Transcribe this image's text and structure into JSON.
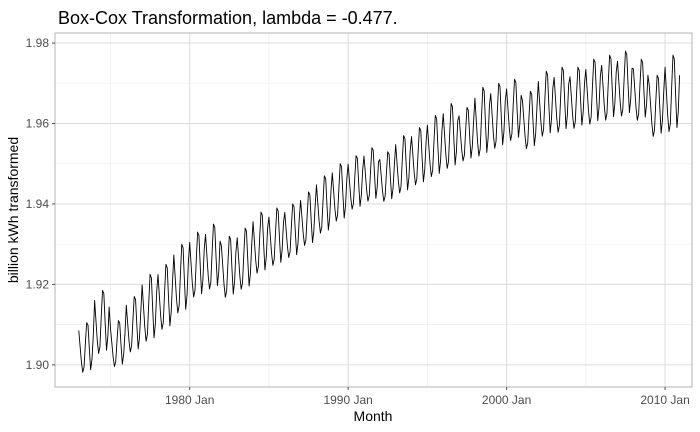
{
  "chart_data": {
    "type": "line",
    "title": "Box-Cox Transformation, lambda = -0.477.",
    "xlabel": "Month",
    "ylabel": "billion kWh transformed",
    "x_range": [
      1971.5,
      2011.7
    ],
    "ylim": [
      1.8945,
      1.9825
    ],
    "x_ticks": [
      {
        "value": 1980,
        "label": "1980 Jan"
      },
      {
        "value": 1990,
        "label": "1990 Jan"
      },
      {
        "value": 2000,
        "label": "2000 Jan"
      },
      {
        "value": 2010,
        "label": "2010 Jan"
      }
    ],
    "y_ticks": [
      {
        "value": 1.9,
        "label": "1.90"
      },
      {
        "value": 1.92,
        "label": "1.92"
      },
      {
        "value": 1.94,
        "label": "1.94"
      },
      {
        "value": 1.96,
        "label": "1.96"
      },
      {
        "value": 1.98,
        "label": "1.98"
      }
    ],
    "grid": true,
    "legend": "none",
    "series": [
      {
        "color": "#000000",
        "x_start": "1973 Jan",
        "x_end": "2010 Dec",
        "frequency": "monthly",
        "yearly": [
          {
            "year": 1973,
            "trough": 1.8975,
            "peak": 1.9105
          },
          {
            "year": 1974,
            "trough": 1.902,
            "peak": 1.9185
          },
          {
            "year": 1975,
            "trough": 1.899,
            "peak": 1.911
          },
          {
            "year": 1976,
            "trough": 1.9025,
            "peak": 1.917
          },
          {
            "year": 1977,
            "trough": 1.905,
            "peak": 1.9225
          },
          {
            "year": 1978,
            "trough": 1.908,
            "peak": 1.925
          },
          {
            "year": 1979,
            "trough": 1.912,
            "peak": 1.93
          },
          {
            "year": 1980,
            "trough": 1.916,
            "peak": 1.933
          },
          {
            "year": 1981,
            "trough": 1.918,
            "peak": 1.935
          },
          {
            "year": 1982,
            "trough": 1.916,
            "peak": 1.932
          },
          {
            "year": 1983,
            "trough": 1.918,
            "peak": 1.934
          },
          {
            "year": 1984,
            "trough": 1.922,
            "peak": 1.938
          },
          {
            "year": 1985,
            "trough": 1.924,
            "peak": 1.939
          },
          {
            "year": 1986,
            "trough": 1.926,
            "peak": 1.94
          },
          {
            "year": 1987,
            "trough": 1.929,
            "peak": 1.943
          },
          {
            "year": 1988,
            "trough": 1.932,
            "peak": 1.947
          },
          {
            "year": 1989,
            "trough": 1.935,
            "peak": 1.95
          },
          {
            "year": 1990,
            "trough": 1.938,
            "peak": 1.952
          },
          {
            "year": 1991,
            "trough": 1.94,
            "peak": 1.954
          },
          {
            "year": 1992,
            "trough": 1.94,
            "peak": 1.953
          },
          {
            "year": 1993,
            "trough": 1.942,
            "peak": 1.957
          },
          {
            "year": 1994,
            "trough": 1.944,
            "peak": 1.959
          },
          {
            "year": 1995,
            "trough": 1.946,
            "peak": 1.962
          },
          {
            "year": 1996,
            "trough": 1.948,
            "peak": 1.965
          },
          {
            "year": 1997,
            "trough": 1.95,
            "peak": 1.964
          },
          {
            "year": 1998,
            "trough": 1.951,
            "peak": 1.969
          },
          {
            "year": 1999,
            "trough": 1.953,
            "peak": 1.97
          },
          {
            "year": 2000,
            "trough": 1.955,
            "peak": 1.971
          },
          {
            "year": 2001,
            "trough": 1.953,
            "peak": 1.968
          },
          {
            "year": 2002,
            "trough": 1.956,
            "peak": 1.973
          },
          {
            "year": 2003,
            "trough": 1.957,
            "peak": 1.974
          },
          {
            "year": 2004,
            "trough": 1.958,
            "peak": 1.974
          },
          {
            "year": 2005,
            "trough": 1.959,
            "peak": 1.976
          },
          {
            "year": 2006,
            "trough": 1.96,
            "peak": 1.977
          },
          {
            "year": 2007,
            "trough": 1.961,
            "peak": 1.978
          },
          {
            "year": 2008,
            "trough": 1.96,
            "peak": 1.976
          },
          {
            "year": 2009,
            "trough": 1.956,
            "peak": 1.972
          },
          {
            "year": 2010,
            "trough": 1.957,
            "peak": 1.977
          }
        ]
      }
    ]
  }
}
